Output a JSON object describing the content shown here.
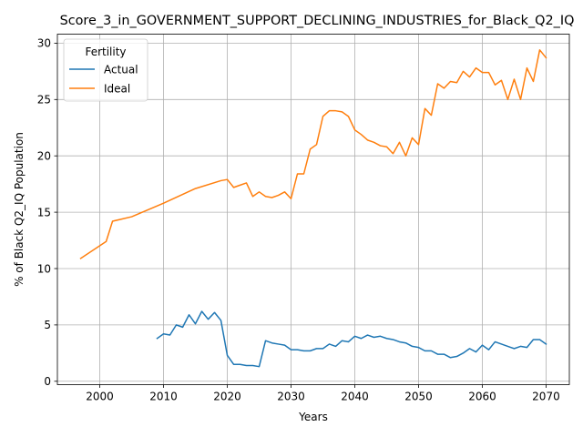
{
  "chart_data": {
    "type": "line",
    "title": "Score_3_in_GOVERNMENT_SUPPORT_DECLINING_INDUSTRIES_for_Black_Q2_IQ",
    "xlabel": "Years",
    "ylabel": "% of Black Q2_IQ Population",
    "xlim": [
      1993.35,
      2073.65
    ],
    "ylim": [
      -0.3,
      30.8
    ],
    "xticks": [
      2000,
      2010,
      2020,
      2030,
      2040,
      2050,
      2060,
      2070
    ],
    "yticks": [
      0,
      5,
      10,
      15,
      20,
      25,
      30
    ],
    "grid": true,
    "legend": {
      "title": "Fertility",
      "position": "upper left"
    },
    "series": [
      {
        "name": "Actual",
        "color": "#1f77b4",
        "x": [
          2009,
          2010,
          2011,
          2012,
          2013,
          2014,
          2015,
          2016,
          2017,
          2018,
          2019,
          2020,
          2021,
          2022,
          2023,
          2024,
          2025,
          2026,
          2027,
          2028,
          2029,
          2030,
          2031,
          2032,
          2033,
          2034,
          2035,
          2036,
          2037,
          2038,
          2039,
          2040,
          2041,
          2042,
          2043,
          2044,
          2045,
          2046,
          2047,
          2048,
          2049,
          2050,
          2051,
          2052,
          2053,
          2054,
          2055,
          2056,
          2057,
          2058,
          2059,
          2060,
          2061,
          2062,
          2063,
          2064,
          2065,
          2066,
          2067,
          2068,
          2069,
          2070
        ],
        "values": [
          3.8,
          4.2,
          4.1,
          5.0,
          4.8,
          5.9,
          5.1,
          6.2,
          5.5,
          6.1,
          5.4,
          2.3,
          1.5,
          1.5,
          1.4,
          1.4,
          1.3,
          3.6,
          3.4,
          3.3,
          3.2,
          2.8,
          2.8,
          2.7,
          2.7,
          2.9,
          2.9,
          3.3,
          3.1,
          3.6,
          3.5,
          4.0,
          3.8,
          4.1,
          3.9,
          4.0,
          3.8,
          3.7,
          3.5,
          3.4,
          3.1,
          3.0,
          2.7,
          2.7,
          2.4,
          2.4,
          2.1,
          2.2,
          2.5,
          2.9,
          2.6,
          3.2,
          2.8,
          3.5,
          3.3,
          3.1,
          2.9,
          3.1,
          3.0,
          3.7,
          3.7,
          3.3
        ]
      },
      {
        "name": "Ideal",
        "color": "#ff7f0e",
        "x": [
          1997,
          2001,
          2002,
          2005,
          2010,
          2015,
          2019,
          2020,
          2021,
          2022,
          2023,
          2024,
          2025,
          2026,
          2027,
          2028,
          2029,
          2030,
          2031,
          2032,
          2033,
          2034,
          2035,
          2036,
          2037,
          2038,
          2039,
          2040,
          2041,
          2042,
          2043,
          2044,
          2045,
          2046,
          2047,
          2048,
          2049,
          2050,
          2051,
          2052,
          2053,
          2054,
          2055,
          2056,
          2057,
          2058,
          2059,
          2060,
          2061,
          2062,
          2063,
          2064,
          2065,
          2066,
          2067,
          2068,
          2069,
          2070
        ],
        "values": [
          10.9,
          12.4,
          14.2,
          14.6,
          15.8,
          17.1,
          17.8,
          17.9,
          17.2,
          17.4,
          17.6,
          16.4,
          16.8,
          16.4,
          16.3,
          16.5,
          16.8,
          16.2,
          18.4,
          18.4,
          20.6,
          21.0,
          23.5,
          24.0,
          24.0,
          23.9,
          23.5,
          22.3,
          21.9,
          21.4,
          21.2,
          20.9,
          20.8,
          20.2,
          21.2,
          20.0,
          21.6,
          21.0,
          24.2,
          23.6,
          26.4,
          26.0,
          26.6,
          26.5,
          27.5,
          27.0,
          27.8,
          27.4,
          27.4,
          26.3,
          26.7,
          25.0,
          26.8,
          25.0,
          27.8,
          26.6,
          29.4,
          28.7
        ]
      }
    ]
  }
}
